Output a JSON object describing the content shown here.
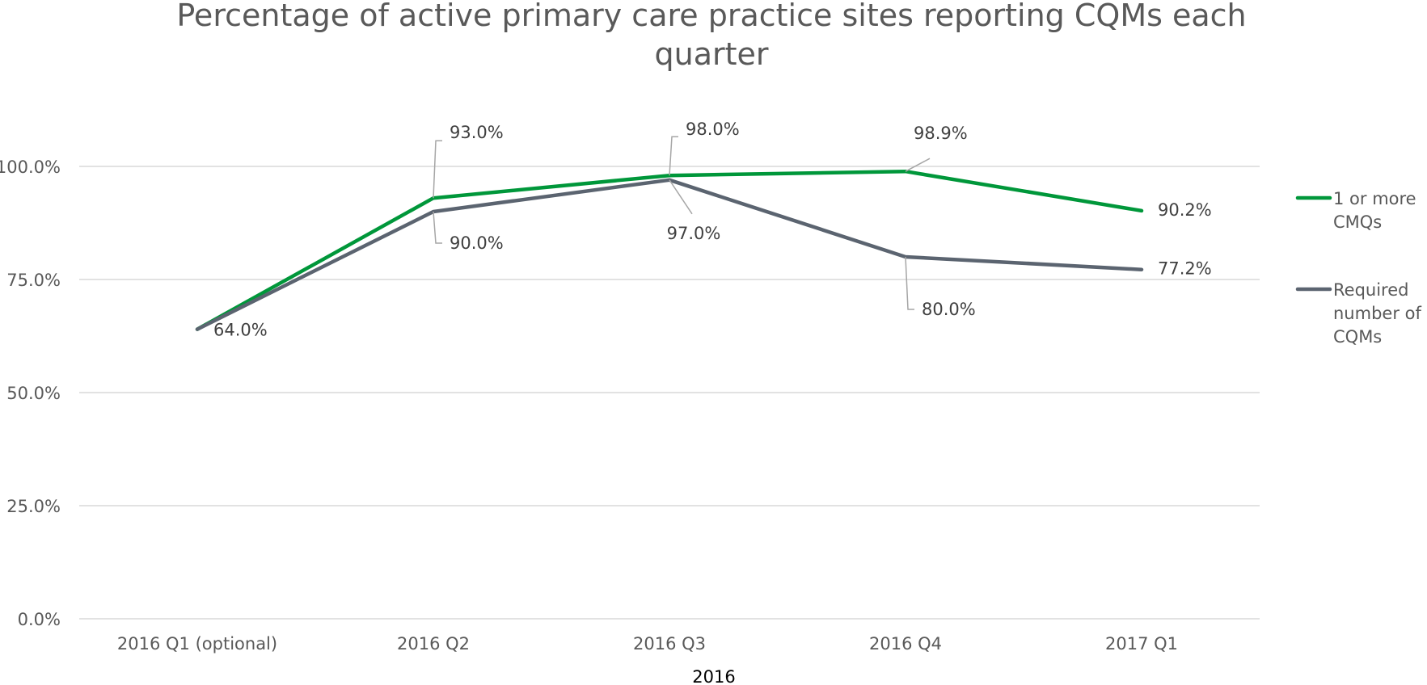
{
  "chart_data": {
    "type": "line",
    "title_lines": [
      "Percentage of active primary care practice sites reporting CQMs each",
      "quarter"
    ],
    "categories": [
      "2016 Q1  (optional)",
      "2016 Q2",
      "2016 Q3",
      "2016 Q4",
      "2017 Q1"
    ],
    "category_group_label": "2016",
    "ylim": [
      0,
      100
    ],
    "yticks": [
      0,
      25,
      50,
      75,
      100
    ],
    "ytick_labels": [
      "0.0%",
      "25.0%",
      "50.0%",
      "75.0%",
      "100.0%"
    ],
    "grid": true,
    "legend_position": "right",
    "series": [
      {
        "name": "1 or more CMQs",
        "legend_lines": [
          "1 or more",
          "CMQs"
        ],
        "color": "#00973a",
        "values": [
          64.0,
          93.0,
          98.0,
          98.9,
          90.2
        ],
        "labels": [
          "",
          "93.0%",
          "98.0%",
          "98.9%",
          "90.2%"
        ]
      },
      {
        "name": "Required number of CQMs",
        "legend_lines": [
          "Required",
          "number of",
          "CQMs"
        ],
        "color": "#5b6470",
        "values": [
          64.0,
          90.0,
          97.0,
          80.0,
          77.2
        ],
        "labels": [
          "64.0%",
          "90.0%",
          "97.0%",
          "80.0%",
          "77.2%"
        ]
      }
    ]
  }
}
